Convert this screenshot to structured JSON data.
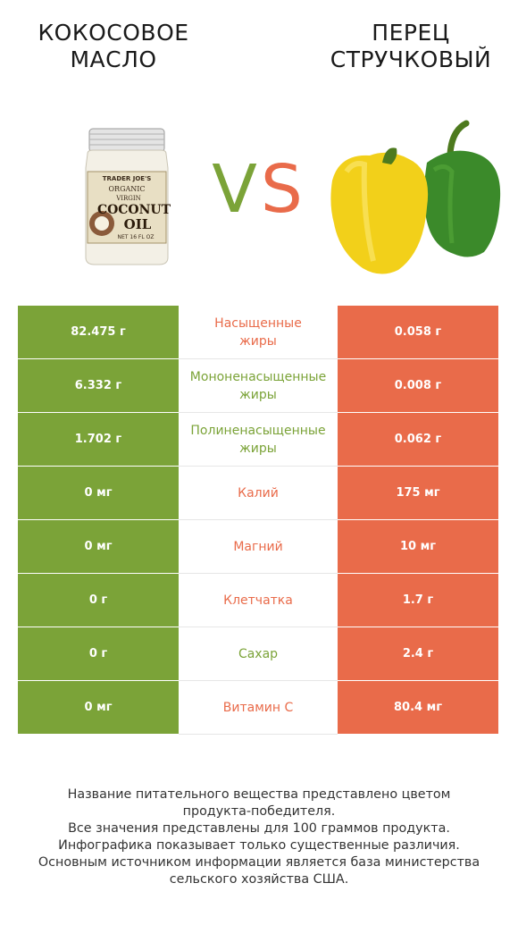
{
  "header": {
    "left_title_line1": "КОКОСОВОЕ",
    "left_title_line2": "МАСЛО",
    "right_title_line1": "ПЕРЕЦ",
    "right_title_line2": "СТРУЧКОВЫЙ",
    "vs_v": "V",
    "vs_s": "S"
  },
  "images": {
    "left_label_brand": "TRADER JOE'S",
    "left_label_line1": "ORGANIC",
    "left_label_line2": "VIRGIN",
    "left_label_line3": "COCONUT",
    "left_label_line4": "OIL",
    "left_label_small": "NET 16 FL OZ"
  },
  "colors": {
    "green": "#7ba338",
    "red": "#e96b4a"
  },
  "rows": [
    {
      "left": "82.475 г",
      "label_line1": "Насыщенные",
      "label_line2": "жиры",
      "right": "0.058 г",
      "winner": "red"
    },
    {
      "left": "6.332 г",
      "label_line1": "Мононенасыщенные",
      "label_line2": "жиры",
      "right": "0.008 г",
      "winner": "green"
    },
    {
      "left": "1.702 г",
      "label_line1": "Полиненасыщенные",
      "label_line2": "жиры",
      "right": "0.062 г",
      "winner": "green"
    },
    {
      "left": "0 мг",
      "label_line1": "Калий",
      "label_line2": "",
      "right": "175 мг",
      "winner": "red"
    },
    {
      "left": "0 мг",
      "label_line1": "Магний",
      "label_line2": "",
      "right": "10 мг",
      "winner": "red"
    },
    {
      "left": "0 г",
      "label_line1": "Клетчатка",
      "label_line2": "",
      "right": "1.7 г",
      "winner": "red"
    },
    {
      "left": "0 г",
      "label_line1": "Сахар",
      "label_line2": "",
      "right": "2.4 г",
      "winner": "green"
    },
    {
      "left": "0 мг",
      "label_line1": "Витамин С",
      "label_line2": "",
      "right": "80.4 мг",
      "winner": "red"
    }
  ],
  "footer": {
    "line1": "Название питательного вещества представлено цветом",
    "line2": "продукта-победителя.",
    "line3": "Все значения представлены для 100 граммов продукта.",
    "line4": "Инфографика показывает только существенные различия.",
    "line5": "Основным источником информации является база министерства",
    "line6": "сельского хозяйства США."
  }
}
